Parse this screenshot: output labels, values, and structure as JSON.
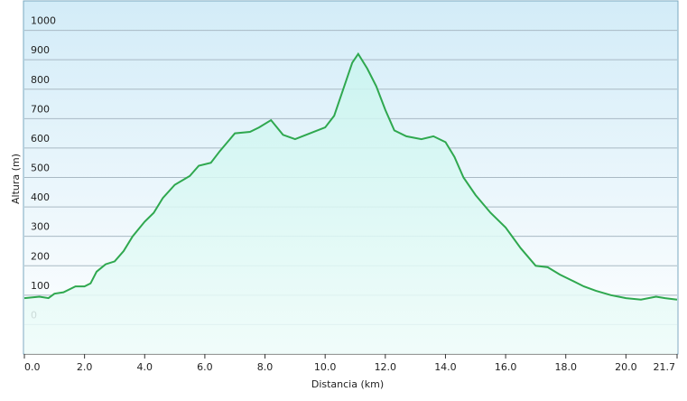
{
  "chart_data": {
    "type": "area",
    "x_label": "Distancia  (km)",
    "y_label": "Altura (m)",
    "x": [
      0,
      0.5,
      0.8,
      1.0,
      1.3,
      1.7,
      2.0,
      2.2,
      2.4,
      2.7,
      3.0,
      3.3,
      3.6,
      4.0,
      4.3,
      4.6,
      5.0,
      5.5,
      5.8,
      6.2,
      6.5,
      7.0,
      7.5,
      7.8,
      8.2,
      8.6,
      9.0,
      9.5,
      10.0,
      10.3,
      10.6,
      10.9,
      11.1,
      11.4,
      11.7,
      12.0,
      12.3,
      12.7,
      13.2,
      13.6,
      14.0,
      14.3,
      14.6,
      15.0,
      15.5,
      16.0,
      16.5,
      17.0,
      17.4,
      17.8,
      18.2,
      18.6,
      19.0,
      19.5,
      20.0,
      20.5,
      21.0,
      21.3,
      21.7
    ],
    "values": [
      90,
      95,
      90,
      105,
      110,
      130,
      130,
      140,
      180,
      205,
      215,
      250,
      300,
      350,
      380,
      430,
      475,
      505,
      540,
      550,
      590,
      650,
      655,
      670,
      695,
      645,
      630,
      650,
      670,
      710,
      800,
      890,
      920,
      870,
      810,
      730,
      660,
      640,
      630,
      640,
      620,
      570,
      500,
      440,
      380,
      330,
      260,
      200,
      195,
      170,
      150,
      130,
      115,
      100,
      90,
      85,
      95,
      90,
      85
    ],
    "color": "#2fa84f",
    "xlim": [
      0,
      21.7
    ],
    "ylim": [
      -100,
      1100
    ],
    "xticks": [
      {
        "value": 0,
        "label": "0.0"
      },
      {
        "value": 2,
        "label": "2.0"
      },
      {
        "value": 4,
        "label": "4.0"
      },
      {
        "value": 6,
        "label": "6.0"
      },
      {
        "value": 8,
        "label": "8.0"
      },
      {
        "value": 10,
        "label": "10.0"
      },
      {
        "value": 12,
        "label": "12.0"
      },
      {
        "value": 14,
        "label": "14.0"
      },
      {
        "value": 16,
        "label": "16.0"
      },
      {
        "value": 18,
        "label": "18.0"
      },
      {
        "value": 20,
        "label": "20.0"
      },
      {
        "value": 21.7,
        "label": "21.7"
      }
    ],
    "yticks": [
      0,
      100,
      200,
      300,
      400,
      500,
      600,
      700,
      800,
      900,
      1000
    ],
    "grid": true
  }
}
